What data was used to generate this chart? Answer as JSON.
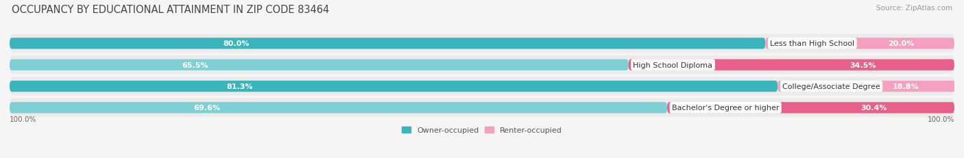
{
  "title": "OCCUPANCY BY EDUCATIONAL ATTAINMENT IN ZIP CODE 83464",
  "source": "Source: ZipAtlas.com",
  "categories": [
    "Less than High School",
    "High School Diploma",
    "College/Associate Degree",
    "Bachelor's Degree or higher"
  ],
  "owner_pct": [
    80.0,
    65.5,
    81.3,
    69.6
  ],
  "renter_pct": [
    20.0,
    34.5,
    18.8,
    30.4
  ],
  "owner_colors": [
    "#3ab5bc",
    "#7fd0d4",
    "#3ab5bc",
    "#7fd0d4"
  ],
  "renter_colors": [
    "#f5a0be",
    "#e8608a",
    "#f5a0be",
    "#e8608a"
  ],
  "row_bg_color": "#ebebeb",
  "bg_color": "#f5f5f5",
  "axis_label_left": "100.0%",
  "axis_label_right": "100.0%",
  "legend_owner": "Owner-occupied",
  "legend_renter": "Renter-occupied",
  "legend_owner_color": "#3ab5bc",
  "legend_renter_color": "#f5a0be",
  "title_fontsize": 10.5,
  "source_fontsize": 7.5,
  "label_fontsize": 8,
  "pct_fontsize": 8
}
